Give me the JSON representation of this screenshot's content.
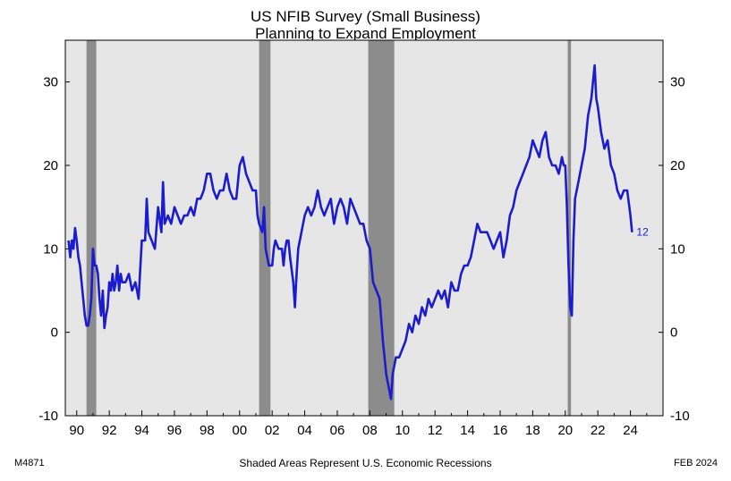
{
  "chart_data": {
    "type": "line",
    "title": "US NFIB Survey (Small Business)",
    "subtitle": "Planning to Expand Employment",
    "footnote": "Shaded Areas Represent U.S. Economic Recessions",
    "code": "M4871",
    "date_stamp": "FEB 2024",
    "end_label": "12",
    "xlim": [
      1989.3,
      2026.0
    ],
    "ylim": [
      -10,
      35
    ],
    "y_ticks": [
      -10,
      0,
      10,
      20,
      30
    ],
    "x_ticks": [
      1990,
      1992,
      1994,
      1996,
      1998,
      2000,
      2002,
      2004,
      2006,
      2008,
      2010,
      2012,
      2014,
      2016,
      2018,
      2020,
      2022,
      2024
    ],
    "x_tick_labels": [
      "90",
      "92",
      "94",
      "96",
      "98",
      "00",
      "02",
      "04",
      "06",
      "08",
      "10",
      "12",
      "14",
      "16",
      "18",
      "20",
      "22",
      "24"
    ],
    "recessions": [
      [
        1990.6,
        1991.2
      ],
      [
        2001.2,
        2001.9
      ],
      [
        2007.9,
        2009.5
      ],
      [
        2020.15,
        2020.35
      ]
    ],
    "colors": {
      "line": "#1c1ccf",
      "plot_bg": "#e6e6e6",
      "recession": "#8c8c8c"
    },
    "series": [
      {
        "values": [
          [
            1989.5,
            11
          ],
          [
            1989.6,
            9
          ],
          [
            1989.7,
            11
          ],
          [
            1989.8,
            10
          ],
          [
            1989.9,
            12.5
          ],
          [
            1990.0,
            11
          ],
          [
            1990.1,
            9
          ],
          [
            1990.2,
            8
          ],
          [
            1990.3,
            6
          ],
          [
            1990.4,
            4
          ],
          [
            1990.5,
            2
          ],
          [
            1990.6,
            0.8
          ],
          [
            1990.7,
            0.8
          ],
          [
            1990.8,
            2
          ],
          [
            1990.9,
            4
          ],
          [
            1991.0,
            10
          ],
          [
            1991.1,
            8
          ],
          [
            1991.2,
            8
          ],
          [
            1991.3,
            7
          ],
          [
            1991.4,
            4
          ],
          [
            1991.5,
            2
          ],
          [
            1991.6,
            5
          ],
          [
            1991.7,
            0.5
          ],
          [
            1991.8,
            2
          ],
          [
            1991.9,
            3
          ],
          [
            1992.0,
            6
          ],
          [
            1992.1,
            5
          ],
          [
            1992.2,
            7
          ],
          [
            1992.3,
            5
          ],
          [
            1992.4,
            6
          ],
          [
            1992.5,
            8
          ],
          [
            1992.6,
            5
          ],
          [
            1992.7,
            7
          ],
          [
            1992.8,
            6
          ],
          [
            1992.9,
            6
          ],
          [
            1993.0,
            6
          ],
          [
            1993.2,
            7
          ],
          [
            1993.4,
            5
          ],
          [
            1993.6,
            6
          ],
          [
            1993.8,
            4
          ],
          [
            1994.0,
            11
          ],
          [
            1994.2,
            11
          ],
          [
            1994.3,
            16
          ],
          [
            1994.4,
            12
          ],
          [
            1994.6,
            11
          ],
          [
            1994.8,
            10
          ],
          [
            1995.0,
            15
          ],
          [
            1995.2,
            12
          ],
          [
            1995.3,
            18
          ],
          [
            1995.4,
            13
          ],
          [
            1995.6,
            14
          ],
          [
            1995.8,
            13
          ],
          [
            1996.0,
            15
          ],
          [
            1996.2,
            14
          ],
          [
            1996.4,
            13
          ],
          [
            1996.6,
            14
          ],
          [
            1996.8,
            14
          ],
          [
            1997.0,
            15
          ],
          [
            1997.2,
            14
          ],
          [
            1997.4,
            16
          ],
          [
            1997.6,
            16
          ],
          [
            1997.8,
            17
          ],
          [
            1998.0,
            19
          ],
          [
            1998.2,
            19
          ],
          [
            1998.4,
            17
          ],
          [
            1998.6,
            16
          ],
          [
            1998.8,
            17
          ],
          [
            1999.0,
            17
          ],
          [
            1999.2,
            19
          ],
          [
            1999.4,
            17
          ],
          [
            1999.6,
            16
          ],
          [
            1999.8,
            16
          ],
          [
            2000.0,
            20
          ],
          [
            2000.2,
            21
          ],
          [
            2000.4,
            19
          ],
          [
            2000.6,
            18
          ],
          [
            2000.8,
            17
          ],
          [
            2001.0,
            17
          ],
          [
            2001.1,
            14
          ],
          [
            2001.2,
            13
          ],
          [
            2001.4,
            12
          ],
          [
            2001.5,
            15
          ],
          [
            2001.6,
            10
          ],
          [
            2001.8,
            8
          ],
          [
            2002.0,
            8
          ],
          [
            2002.1,
            10
          ],
          [
            2002.2,
            11
          ],
          [
            2002.4,
            10
          ],
          [
            2002.6,
            10
          ],
          [
            2002.7,
            8
          ],
          [
            2002.8,
            10
          ],
          [
            2002.9,
            11
          ],
          [
            2003.0,
            11
          ],
          [
            2003.1,
            9
          ],
          [
            2003.3,
            6
          ],
          [
            2003.4,
            3
          ],
          [
            2003.5,
            7
          ],
          [
            2003.6,
            10
          ],
          [
            2003.8,
            12
          ],
          [
            2004.0,
            14
          ],
          [
            2004.2,
            15
          ],
          [
            2004.4,
            14
          ],
          [
            2004.6,
            15
          ],
          [
            2004.8,
            17
          ],
          [
            2005.0,
            15
          ],
          [
            2005.2,
            14
          ],
          [
            2005.4,
            15
          ],
          [
            2005.6,
            16
          ],
          [
            2005.8,
            13
          ],
          [
            2006.0,
            15
          ],
          [
            2006.2,
            16
          ],
          [
            2006.4,
            15
          ],
          [
            2006.6,
            13
          ],
          [
            2006.8,
            16
          ],
          [
            2007.0,
            15
          ],
          [
            2007.2,
            14
          ],
          [
            2007.4,
            13
          ],
          [
            2007.6,
            13
          ],
          [
            2007.8,
            11
          ],
          [
            2008.0,
            10
          ],
          [
            2008.1,
            8
          ],
          [
            2008.2,
            6
          ],
          [
            2008.4,
            5
          ],
          [
            2008.6,
            4
          ],
          [
            2008.8,
            -1
          ],
          [
            2008.9,
            -3
          ],
          [
            2009.0,
            -5
          ],
          [
            2009.1,
            -6
          ],
          [
            2009.2,
            -7
          ],
          [
            2009.3,
            -8
          ],
          [
            2009.4,
            -5
          ],
          [
            2009.6,
            -3
          ],
          [
            2009.8,
            -3
          ],
          [
            2010.0,
            -2
          ],
          [
            2010.2,
            -1
          ],
          [
            2010.4,
            1
          ],
          [
            2010.6,
            0
          ],
          [
            2010.8,
            2
          ],
          [
            2011.0,
            1
          ],
          [
            2011.2,
            3
          ],
          [
            2011.4,
            2
          ],
          [
            2011.6,
            4
          ],
          [
            2011.8,
            3
          ],
          [
            2012.0,
            4
          ],
          [
            2012.2,
            5
          ],
          [
            2012.4,
            4
          ],
          [
            2012.6,
            5
          ],
          [
            2012.8,
            3
          ],
          [
            2013.0,
            6
          ],
          [
            2013.2,
            5
          ],
          [
            2013.4,
            5
          ],
          [
            2013.6,
            7
          ],
          [
            2013.8,
            8
          ],
          [
            2014.0,
            8
          ],
          [
            2014.2,
            9
          ],
          [
            2014.4,
            11
          ],
          [
            2014.6,
            13
          ],
          [
            2014.8,
            12
          ],
          [
            2015.0,
            12
          ],
          [
            2015.2,
            12
          ],
          [
            2015.4,
            11
          ],
          [
            2015.6,
            10
          ],
          [
            2015.8,
            11
          ],
          [
            2016.0,
            12
          ],
          [
            2016.2,
            9
          ],
          [
            2016.4,
            11
          ],
          [
            2016.6,
            14
          ],
          [
            2016.8,
            15
          ],
          [
            2017.0,
            17
          ],
          [
            2017.2,
            18
          ],
          [
            2017.4,
            19
          ],
          [
            2017.6,
            20
          ],
          [
            2017.8,
            21
          ],
          [
            2018.0,
            23
          ],
          [
            2018.2,
            22
          ],
          [
            2018.4,
            21
          ],
          [
            2018.6,
            23
          ],
          [
            2018.8,
            24
          ],
          [
            2019.0,
            21
          ],
          [
            2019.2,
            20
          ],
          [
            2019.4,
            20
          ],
          [
            2019.6,
            19
          ],
          [
            2019.8,
            21
          ],
          [
            2019.9,
            20
          ],
          [
            2020.0,
            20
          ],
          [
            2020.1,
            15
          ],
          [
            2020.2,
            8
          ],
          [
            2020.3,
            3
          ],
          [
            2020.4,
            2
          ],
          [
            2020.5,
            11
          ],
          [
            2020.6,
            16
          ],
          [
            2020.8,
            18
          ],
          [
            2021.0,
            20
          ],
          [
            2021.2,
            22
          ],
          [
            2021.4,
            26
          ],
          [
            2021.6,
            28
          ],
          [
            2021.8,
            32
          ],
          [
            2021.9,
            28
          ],
          [
            2022.0,
            27
          ],
          [
            2022.2,
            24
          ],
          [
            2022.4,
            22
          ],
          [
            2022.6,
            23
          ],
          [
            2022.8,
            20
          ],
          [
            2023.0,
            19
          ],
          [
            2023.2,
            17
          ],
          [
            2023.4,
            16
          ],
          [
            2023.6,
            17
          ],
          [
            2023.8,
            17
          ],
          [
            2024.0,
            14
          ],
          [
            2024.1,
            12
          ]
        ]
      }
    ]
  }
}
